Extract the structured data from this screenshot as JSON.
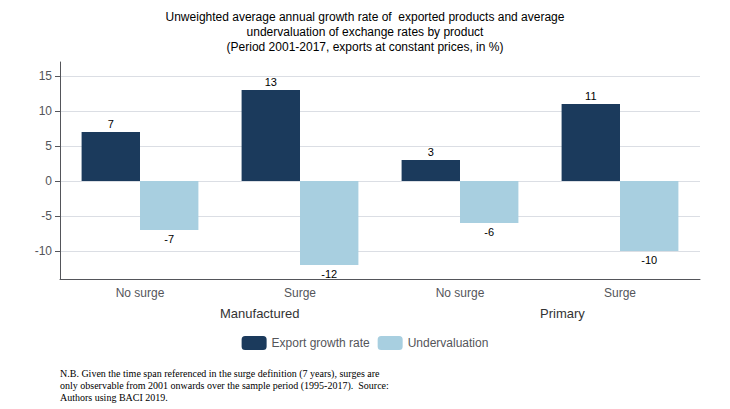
{
  "chart_data": {
    "type": "bar",
    "title": "Unweighted average annual growth rate of  exported products and average\nundervaluation of exchange rates by product\n(Period 2001-2017, exports at constant prices, in %)",
    "categories": [
      "No surge",
      "Surge",
      "No surge",
      "Surge"
    ],
    "group_labels": [
      "Manufactured",
      "Primary"
    ],
    "series": [
      {
        "name": "Export growth rate",
        "color": "#1b3a5c",
        "values": [
          7,
          13,
          3,
          11
        ]
      },
      {
        "name": "Undervaluation",
        "color": "#a8cfe0",
        "values": [
          -7,
          -12,
          -6,
          -10
        ]
      }
    ],
    "ylim": [
      -14,
      17
    ],
    "yticks": [
      -10,
      -5,
      0,
      5,
      10,
      15
    ],
    "grid": true,
    "data_labels": true,
    "legend": "bottom",
    "note": "N.B. Given the time span referenced in the surge definition (7 years), surges are\nonly observable from 2001 onwards over the sample period (1995-2017).  Source:\nAuthors using BACI 2019."
  }
}
